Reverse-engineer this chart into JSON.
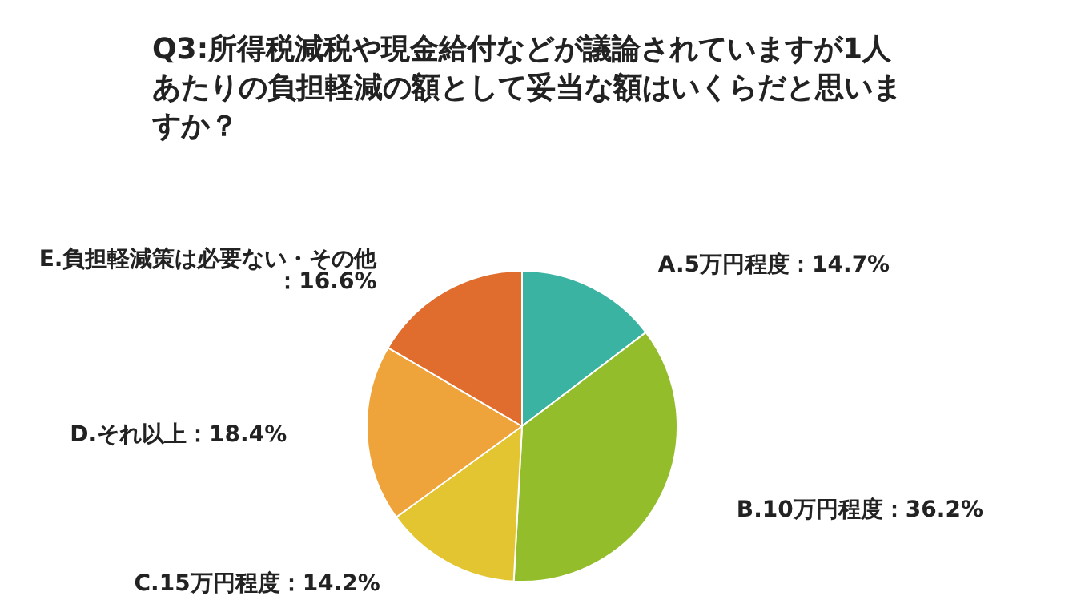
{
  "chart_data": {
    "type": "pie",
    "title": "Q3:所得税減税や現金給付などが議論されていますが1人あたりの負担軽減の額として妥当な額はいくらだと思いますか？",
    "categories": [
      "A.5万円程度",
      "B.10万円程度",
      "C.15万円程度",
      "D.それ以上",
      "E.負担軽減策は必要ない・その他"
    ],
    "values": [
      14.7,
      36.2,
      14.2,
      18.4,
      16.6
    ],
    "colors": [
      "#3bb3a3",
      "#94bd2b",
      "#e3c431",
      "#eea33b",
      "#e06d2e"
    ],
    "value_labels": [
      "：14.7%",
      "：36.2%",
      "：14.2%",
      "：18.4%",
      "：16.6%"
    ]
  }
}
